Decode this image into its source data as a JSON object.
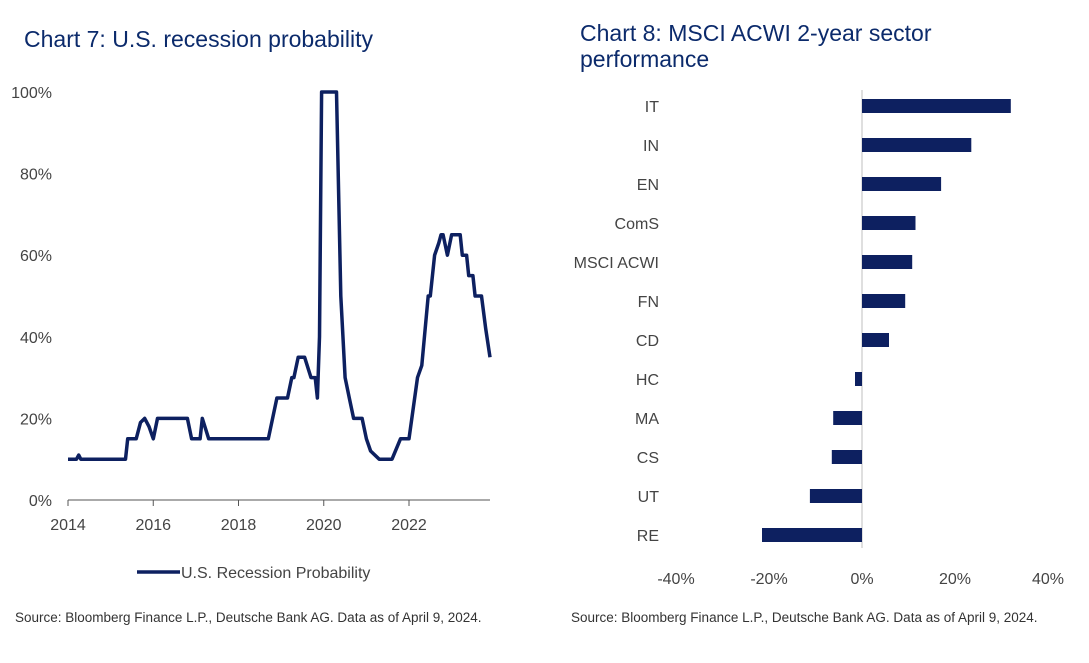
{
  "colors": {
    "series": "#0d2060",
    "title": "#0b2a6b",
    "axis": "#555555",
    "text": "#444444"
  },
  "charts": {
    "left": {
      "title": "Chart 7: U.S. recession probability",
      "source": "Source: Bloomberg Finance L.P., Deutsche Bank AG. Data as of April 9, 2024."
    },
    "right": {
      "title": "Chart 8: MSCI ACWI 2-year sector performance",
      "source": "Source: Bloomberg Finance L.P., Deutsche Bank AG. Data as of April 9, 2024."
    }
  },
  "chart_data": [
    {
      "type": "line",
      "title": "Chart 7: U.S. recession probability",
      "xlabel": "",
      "ylabel": "",
      "xlim": [
        2014,
        2023.9
      ],
      "ylim": [
        0,
        100
      ],
      "x_ticks": [
        2014,
        2016,
        2018,
        2020,
        2022
      ],
      "x_tick_labels": [
        "2014",
        "2016",
        "2018",
        "2020",
        "2022"
      ],
      "y_ticks": [
        0,
        20,
        40,
        60,
        80,
        100
      ],
      "y_tick_labels": [
        "0%",
        "20%",
        "40%",
        "60%",
        "80%",
        "100%"
      ],
      "legend": {
        "position": "bottom",
        "entries": [
          "U.S. Recession Probability"
        ]
      },
      "series": [
        {
          "name": "U.S. Recession Probability",
          "x": [
            2014.0,
            2014.2,
            2014.25,
            2014.3,
            2014.4,
            2014.6,
            2015.0,
            2015.35,
            2015.4,
            2015.45,
            2015.6,
            2015.7,
            2015.8,
            2015.9,
            2016.0,
            2016.1,
            2016.3,
            2016.6,
            2016.8,
            2016.9,
            2017.0,
            2017.1,
            2017.15,
            2017.3,
            2017.6,
            2018.0,
            2018.3,
            2018.5,
            2018.7,
            2018.9,
            2019.1,
            2019.15,
            2019.25,
            2019.3,
            2019.4,
            2019.55,
            2019.7,
            2019.8,
            2019.85,
            2019.9,
            2019.95,
            2020.0,
            2020.1,
            2020.3,
            2020.4,
            2020.5,
            2020.6,
            2020.7,
            2020.9,
            2021.0,
            2021.1,
            2021.3,
            2021.4,
            2021.6,
            2021.8,
            2022.0,
            2022.2,
            2022.3,
            2022.45,
            2022.5,
            2022.6,
            2022.7,
            2022.75,
            2022.8,
            2022.9,
            2023.0,
            2023.2,
            2023.25,
            2023.35,
            2023.4,
            2023.5,
            2023.55,
            2023.7,
            2023.8,
            2023.9
          ],
          "y": [
            10,
            10,
            11,
            10,
            10,
            10,
            10,
            10,
            15,
            15,
            15,
            19,
            20,
            18,
            15,
            20,
            20,
            20,
            20,
            15,
            15,
            15,
            20,
            15,
            15,
            15,
            15,
            15,
            15,
            25,
            25,
            25,
            30,
            30,
            35,
            35,
            30,
            30,
            25,
            40,
            100,
            100,
            100,
            100,
            50,
            30,
            25,
            20,
            20,
            15,
            12,
            10,
            10,
            10,
            15,
            15,
            30,
            33,
            50,
            50,
            60,
            63,
            65,
            65,
            60,
            65,
            65,
            60,
            60,
            55,
            55,
            50,
            50,
            42,
            35
          ]
        }
      ]
    },
    {
      "type": "bar",
      "orientation": "horizontal",
      "title": "Chart 8: MSCI ACWI 2-year sector performance",
      "categories": [
        "IT",
        "IN",
        "EN",
        "ComS",
        "MSCI ACWI",
        "FN",
        "CD",
        "HC",
        "MA",
        "CS",
        "UT",
        "RE"
      ],
      "values": [
        32,
        23.5,
        17,
        11.5,
        10.8,
        9.3,
        5.8,
        -1.5,
        -6.2,
        -6.5,
        -11.2,
        -21.5
      ],
      "xlim": [
        -40,
        40
      ],
      "x_ticks": [
        -40,
        -20,
        0,
        20,
        40
      ],
      "x_tick_labels": [
        "-40%",
        "-20%",
        "0%",
        "20%",
        "40%"
      ],
      "xlabel": "",
      "ylabel": ""
    }
  ]
}
